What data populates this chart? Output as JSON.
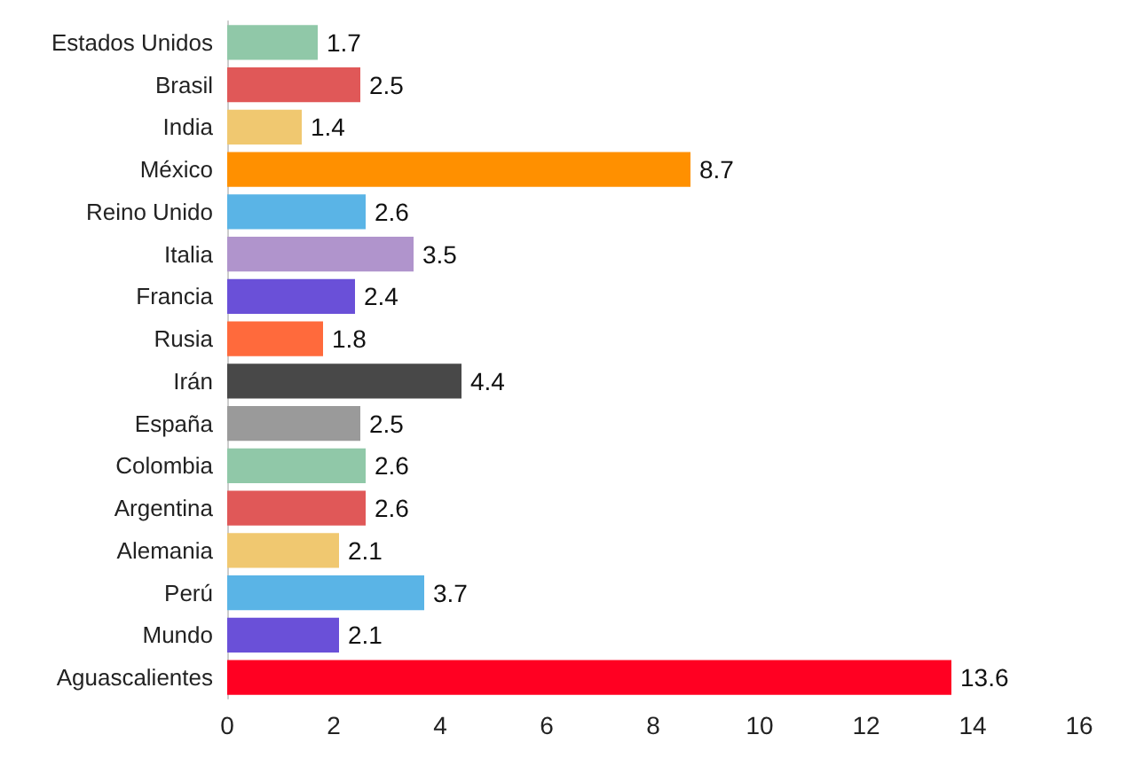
{
  "chart_data": {
    "type": "bar",
    "orientation": "horizontal",
    "categories": [
      "Estados Unidos",
      "Brasil",
      "India",
      "México",
      "Reino Unido",
      "Italia",
      "Francia",
      "Rusia",
      "Irán",
      "España",
      "Colombia",
      "Argentina",
      "Alemania",
      "Perú",
      "Mundo",
      "Aguascalientes"
    ],
    "values": [
      1.7,
      2.5,
      1.4,
      8.7,
      2.6,
      3.5,
      2.4,
      1.8,
      4.4,
      2.5,
      2.6,
      2.6,
      2.1,
      3.7,
      2.1,
      13.6
    ],
    "colors": [
      "#90c8a8",
      "#e05858",
      "#f0c870",
      "#ff9000",
      "#5ab4e6",
      "#b094cc",
      "#6a50d8",
      "#ff6a3c",
      "#484848",
      "#9a9a9a",
      "#90c8a8",
      "#e05858",
      "#f0c870",
      "#5ab4e6",
      "#6a50d8",
      "#ff0022"
    ],
    "xlim": [
      0,
      16
    ],
    "xticks": [
      0,
      2,
      4,
      6,
      8,
      10,
      12,
      14,
      16
    ],
    "data_labels": true,
    "grid": false
  }
}
